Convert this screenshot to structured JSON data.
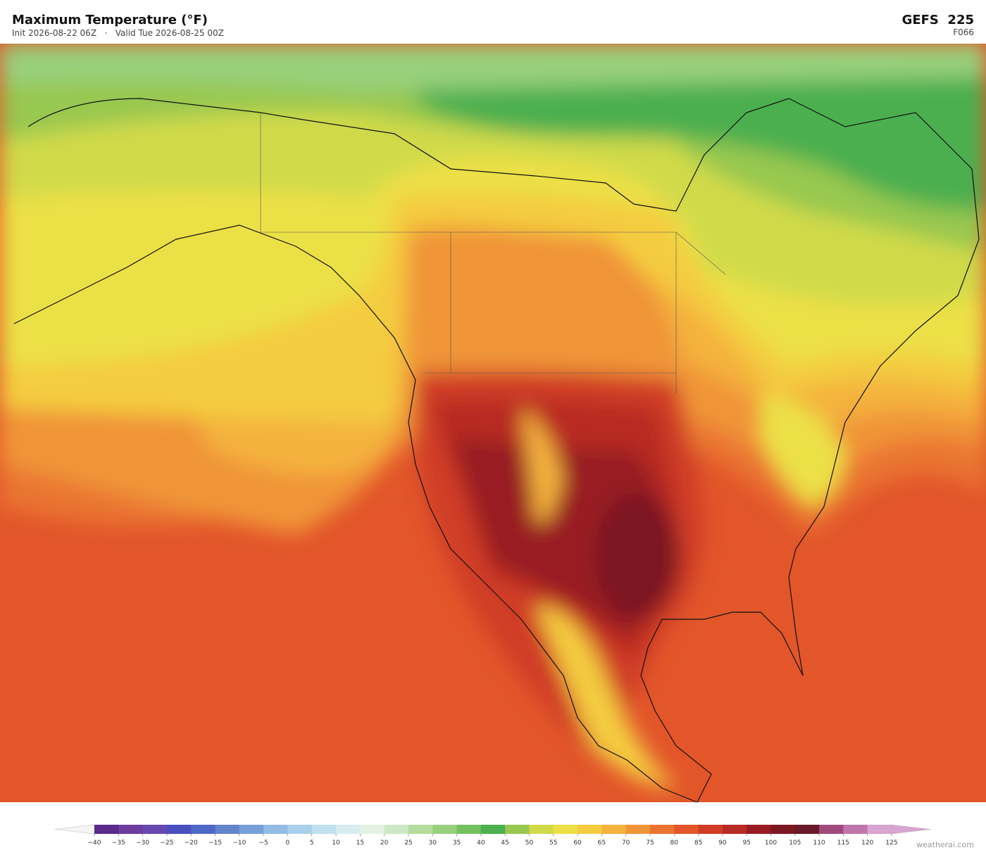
{
  "header": {
    "title": "Maximum Temperature  (°F)",
    "subtitle": "Init 2026-08-22 06Z   ·   Valid Tue 2026-08-25 00Z",
    "model": "GEFS  225",
    "forecast": "F066"
  },
  "colorbar": {
    "ticks": [
      {
        "value": -40,
        "label": "−40"
      },
      {
        "value": -35,
        "label": "−35"
      },
      {
        "value": -30,
        "label": "−30"
      },
      {
        "value": -25,
        "label": "−25"
      },
      {
        "value": -20,
        "label": "−20"
      },
      {
        "value": -15,
        "label": "−15"
      },
      {
        "value": -10,
        "label": "−10"
      },
      {
        "value": -5,
        "label": "−5"
      },
      0,
      5,
      10,
      15,
      20,
      25,
      30,
      35,
      40,
      45,
      50,
      55,
      60,
      65,
      70,
      75,
      80,
      85,
      90,
      95,
      100,
      105,
      110,
      115,
      120,
      125
    ],
    "colors": [
      "#5a2a8c",
      "#6e3c9c",
      "#6848b0",
      "#4a4ec0",
      "#4e68c8",
      "#6284cc",
      "#78a0d8",
      "#92bce2",
      "#a8d0ea",
      "#c0e0ee",
      "#d8ecf0",
      "#e4f2e4",
      "#cce8c4",
      "#b4dc9c",
      "#98d07c",
      "#74c060",
      "#4caf50",
      "#98c850",
      "#d0da48",
      "#ece046",
      "#f4cc40",
      "#f4b23c",
      "#f09438",
      "#ea7430",
      "#e2562a",
      "#d03c26",
      "#b82a24",
      "#981c22",
      "#7c1822",
      "#6a1a2a",
      "#a04a7c",
      "#c076ac",
      "#d8a4d0"
    ]
  },
  "footer": {
    "credit": "weatherai.com"
  }
}
